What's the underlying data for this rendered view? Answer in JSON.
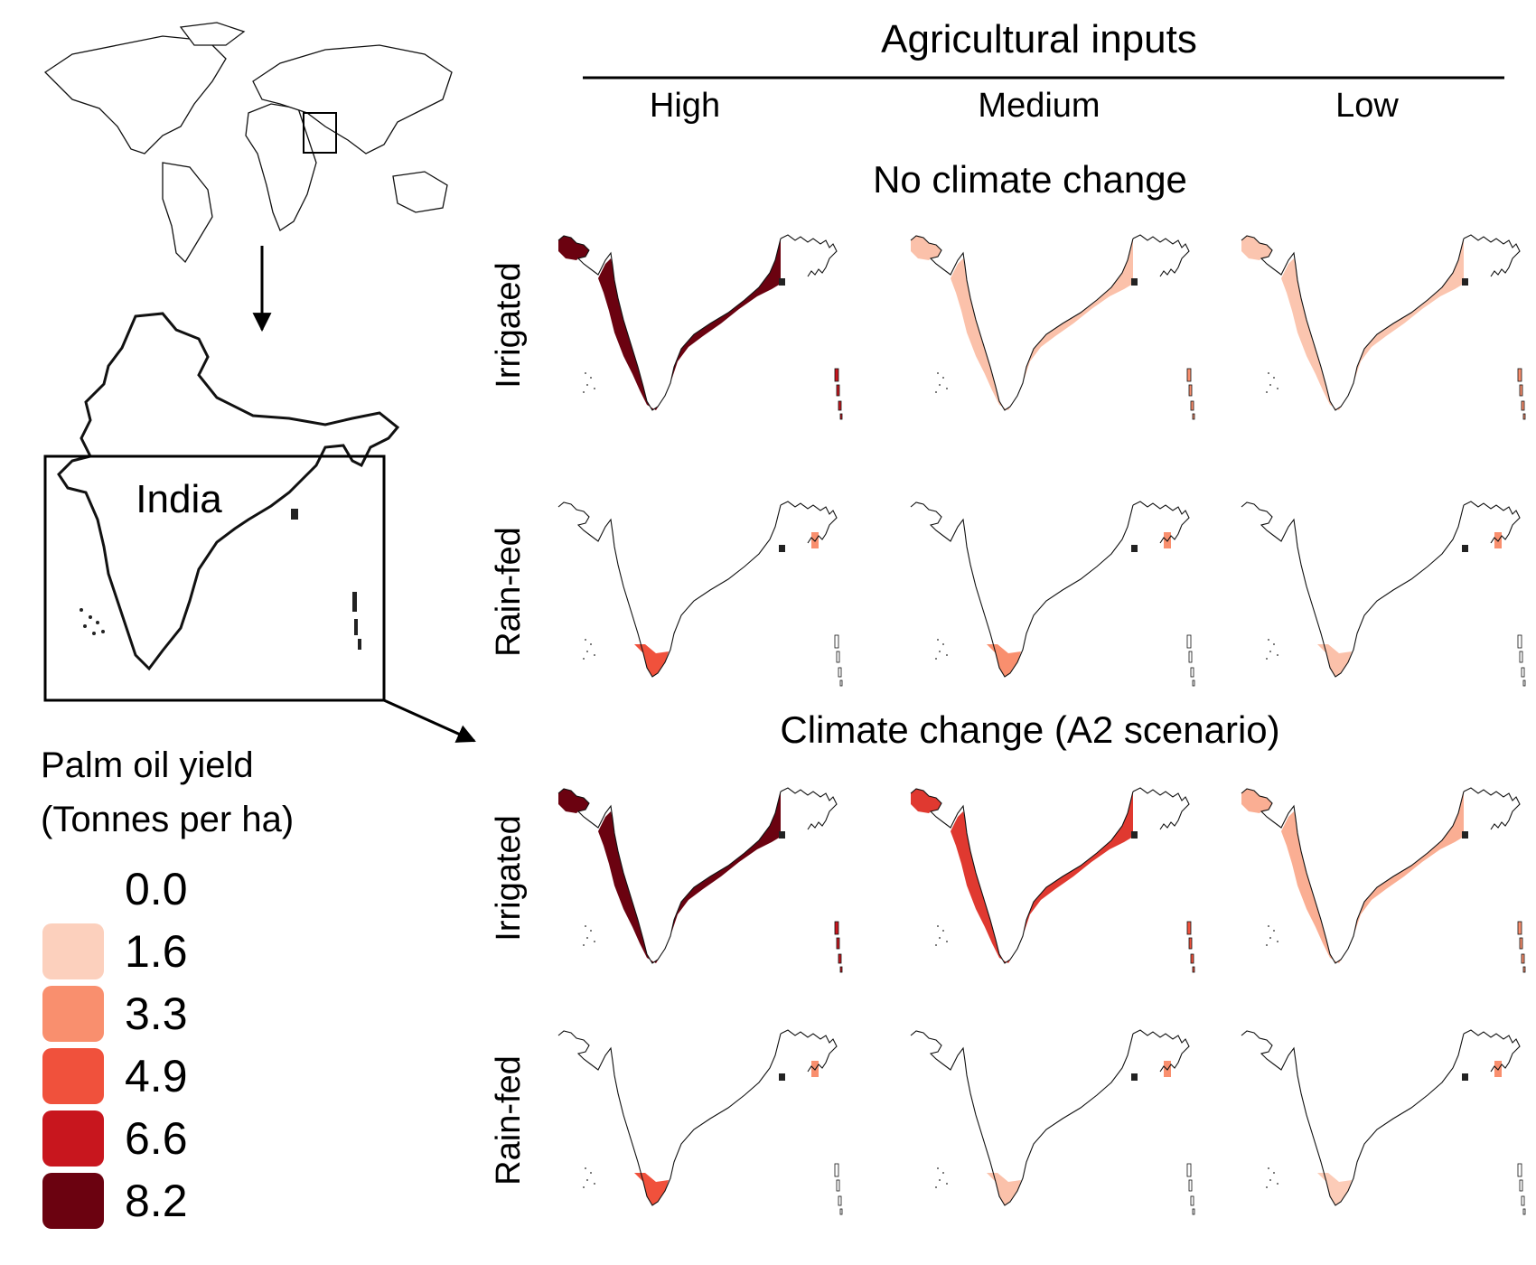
{
  "header": {
    "title": "Agricultural inputs",
    "columns": [
      "High",
      "Medium",
      "Low"
    ]
  },
  "scenarios": [
    {
      "title": "No climate change",
      "rows": [
        {
          "label": "Irrigated",
          "levels": [
            8.2,
            2.0,
            1.9
          ],
          "island_levels": [
            6.6,
            3.3,
            3.3
          ]
        },
        {
          "label": "Rain-fed",
          "levels": [
            4.9,
            3.3,
            2.0
          ],
          "island_levels": [
            3.3,
            3.3,
            3.3
          ]
        }
      ]
    },
    {
      "title": "Climate change (A2 scenario)",
      "rows": [
        {
          "label": "Irrigated",
          "levels": [
            8.2,
            5.6,
            2.5
          ],
          "island_levels": [
            6.6,
            4.9,
            3.3
          ]
        },
        {
          "label": "Rain-fed",
          "levels": [
            4.9,
            2.0,
            1.7
          ],
          "island_levels": [
            3.3,
            3.3,
            3.3
          ]
        }
      ]
    }
  ],
  "inset": {
    "label": "India"
  },
  "legend": {
    "title_line1": "Palm oil yield",
    "title_line2": "(Tonnes per ha)",
    "items": [
      {
        "label": "0.0",
        "color": "#ffffff"
      },
      {
        "label": "1.6",
        "color": "#fcd0bd"
      },
      {
        "label": "3.3",
        "color": "#f98f6e"
      },
      {
        "label": "4.9",
        "color": "#f0513c"
      },
      {
        "label": "6.6",
        "color": "#c8161e"
      },
      {
        "label": "8.2",
        "color": "#6b0210"
      }
    ]
  }
}
